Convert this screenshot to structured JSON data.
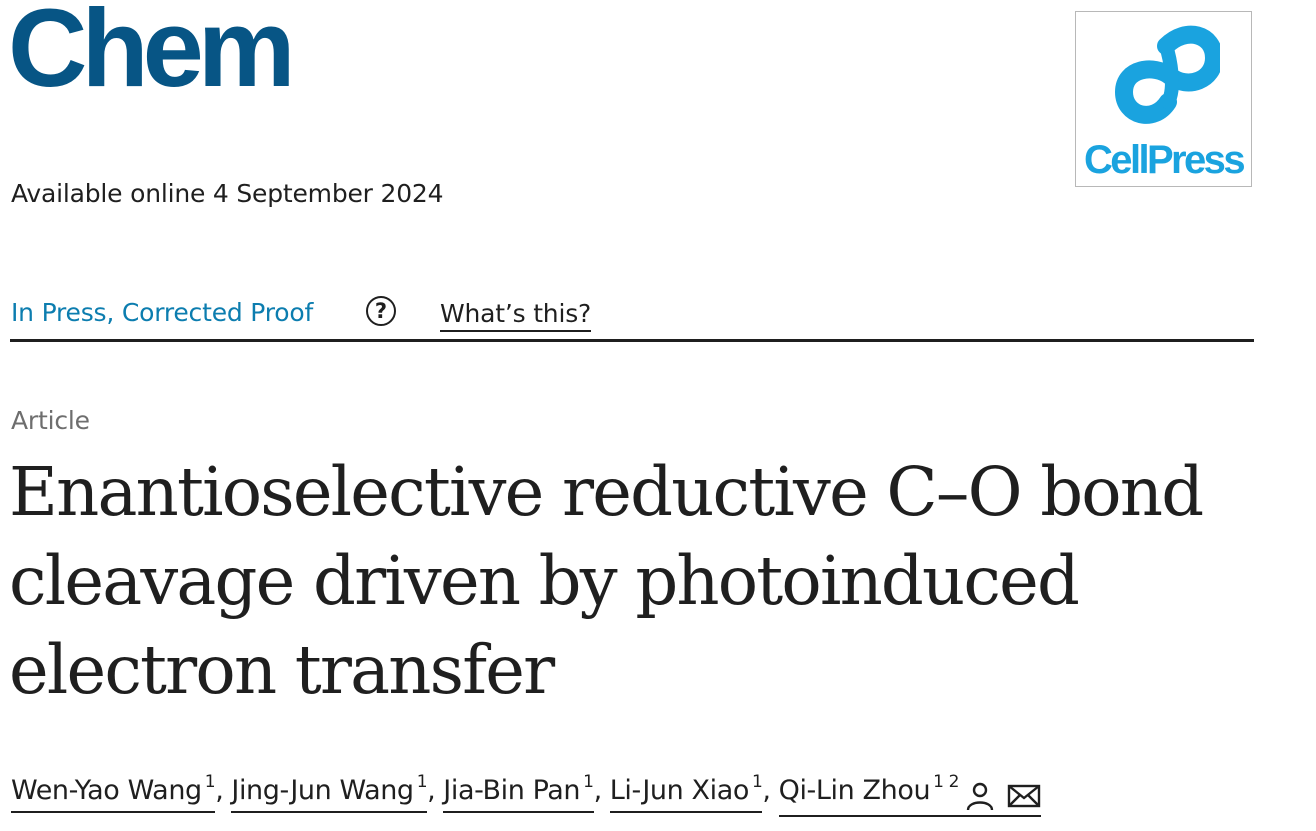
{
  "journal": {
    "name": "Chem",
    "brand_color": "#075585"
  },
  "publisher": {
    "name": "CellPress",
    "logo_icon": "cellpress-logo-icon",
    "brand_color": "#1aa3df"
  },
  "availability": "Available online 4 September 2024",
  "status": {
    "label": "In Press, Corrected Proof",
    "help_icon": "?",
    "whats_this": "What’s this?",
    "link_color": "#0c7daf"
  },
  "article": {
    "type": "Article",
    "title": "Enantioselective reductive C–O bond cleavage driven by photoinduced electron transfer"
  },
  "authors": [
    {
      "name": "Wen-Yao Wang",
      "affiliations": "1"
    },
    {
      "name": "Jing-Jun Wang",
      "affiliations": "1"
    },
    {
      "name": "Jia-Bin Pan",
      "affiliations": "1"
    },
    {
      "name": "Li-Jun Xiao",
      "affiliations": "1"
    },
    {
      "name": "Qi-Lin Zhou",
      "affiliations": "1 2",
      "icons": [
        "person-icon",
        "envelope-icon"
      ]
    }
  ],
  "separator": ","
}
